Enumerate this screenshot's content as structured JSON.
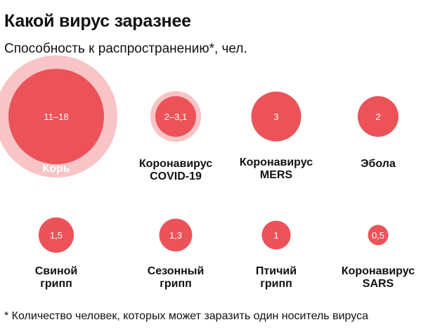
{
  "chart_data": {
    "type": "bubble",
    "title": "Какой вирус заразнее",
    "subtitle": "Способность к распространению*, чел.",
    "footnote": "* Количество человек, которых может заразить один носитель вируса",
    "colors": {
      "core": "#eb5359",
      "halo": "#f8c4c6",
      "text_dark": "#111111",
      "text_light": "#ffffff"
    },
    "items": [
      {
        "name": "Корь",
        "label_lines": [
          "Корь"
        ],
        "value_text": "11–18",
        "min": 11,
        "max": 18
      },
      {
        "name": "Коронавирус COVID-19",
        "label_lines": [
          "Коронавирус",
          "COVID-19"
        ],
        "value_text": "2–3,1",
        "min": 2,
        "max": 3.1
      },
      {
        "name": "Коронавирус MERS",
        "label_lines": [
          "Коронавирус",
          "MERS"
        ],
        "value_text": "3",
        "min": 3,
        "max": 3
      },
      {
        "name": "Эбола",
        "label_lines": [
          "Эбола"
        ],
        "value_text": "2",
        "min": 2,
        "max": 2
      },
      {
        "name": "Свиной грипп",
        "label_lines": [
          "Свиной",
          "грипп"
        ],
        "value_text": "1,5",
        "min": 1.5,
        "max": 1.5
      },
      {
        "name": "Сезонный грипп",
        "label_lines": [
          "Сезонный",
          "грипп"
        ],
        "value_text": "1,3",
        "min": 1.3,
        "max": 1.3
      },
      {
        "name": "Птичий грипп",
        "label_lines": [
          "Птичий",
          "грипп"
        ],
        "value_text": "1",
        "min": 1,
        "max": 1
      },
      {
        "name": "Коронавирус SARS",
        "label_lines": [
          "Коронавирус",
          "SARS"
        ],
        "value_text": "0,5",
        "min": 0.5,
        "max": 0.5
      }
    ]
  }
}
